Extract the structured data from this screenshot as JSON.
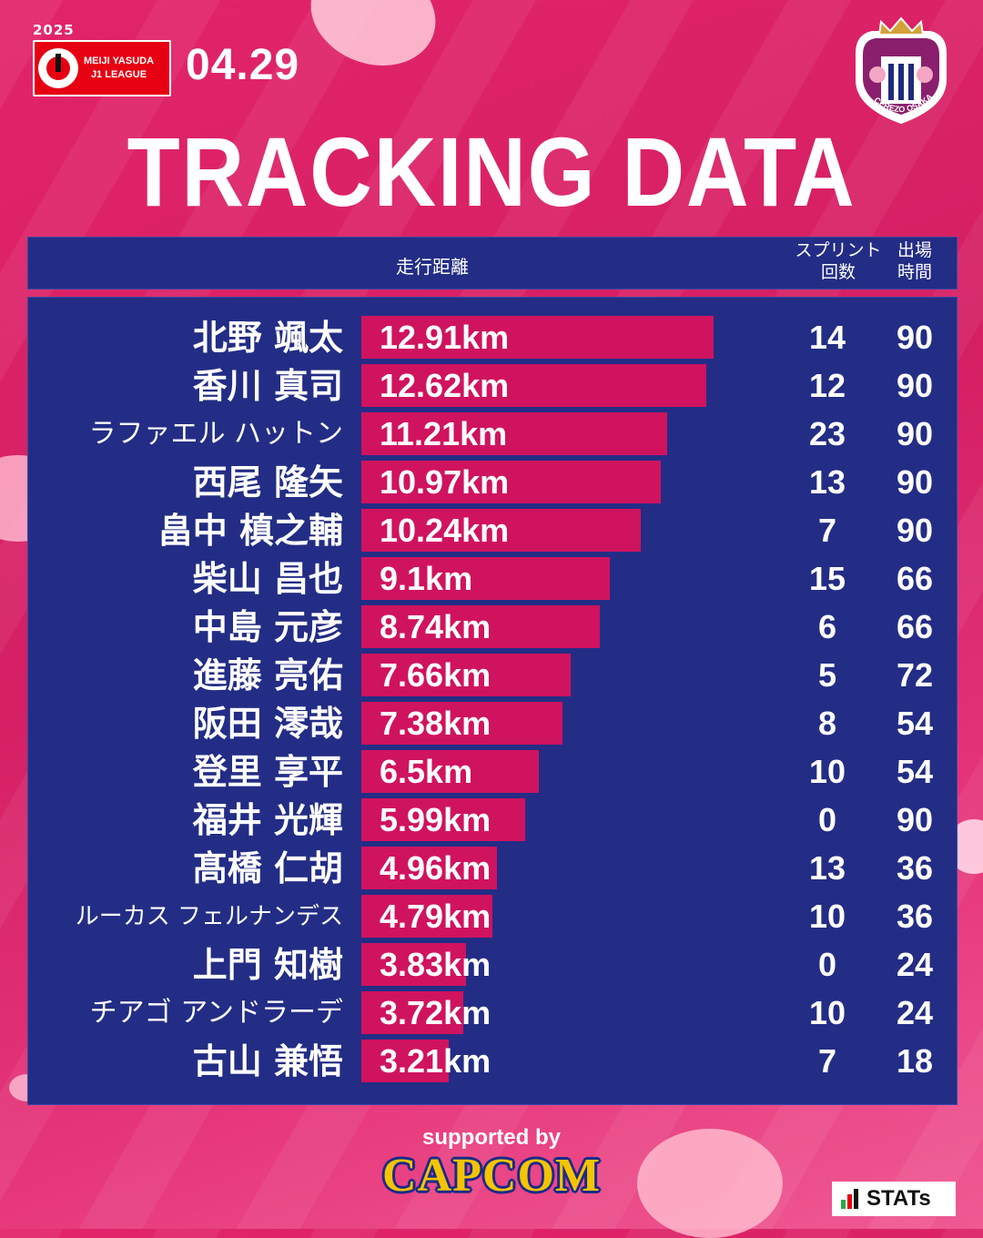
{
  "league": {
    "year": "2025",
    "line1": "MEIJI YASUDA",
    "line2": "J1 LEAGUE"
  },
  "match_date": "04.29",
  "club_crest_text": "CEREZO OSAKA",
  "colors": {
    "background": "#e2246a",
    "panel": "#232d85",
    "bar": "#d0135f",
    "sponsor_fill": "#f5c400",
    "sponsor_outline": "#1b2a8a"
  },
  "chart_data": {
    "type": "bar",
    "orientation": "horizontal",
    "title": "TRACKING DATA",
    "columns": {
      "distance": "走行距離",
      "sprints": "スプリント 回数",
      "minutes": "出場 時間"
    },
    "columns_lines": {
      "sprints": [
        "スプリント",
        "回数"
      ],
      "minutes": [
        "出場",
        "時間"
      ]
    },
    "unit": "km",
    "xlim": [
      0,
      14
    ],
    "rows": [
      {
        "name": "北野 颯太",
        "distance": 12.91,
        "distance_label": "12.91km",
        "sprints": 14,
        "minutes": 90
      },
      {
        "name": "香川 真司",
        "distance": 12.62,
        "distance_label": "12.62km",
        "sprints": 12,
        "minutes": 90
      },
      {
        "name": "ラファエル ハットン",
        "distance": 11.21,
        "distance_label": "11.21km",
        "sprints": 23,
        "minutes": 90
      },
      {
        "name": "西尾 隆矢",
        "distance": 10.97,
        "distance_label": "10.97km",
        "sprints": 13,
        "minutes": 90
      },
      {
        "name": "畠中 槙之輔",
        "distance": 10.24,
        "distance_label": "10.24km",
        "sprints": 7,
        "minutes": 90
      },
      {
        "name": "柴山 昌也",
        "distance": 9.1,
        "distance_label": "9.1km",
        "sprints": 15,
        "minutes": 66
      },
      {
        "name": "中島 元彦",
        "distance": 8.74,
        "distance_label": "8.74km",
        "sprints": 6,
        "minutes": 66
      },
      {
        "name": "進藤 亮佑",
        "distance": 7.66,
        "distance_label": "7.66km",
        "sprints": 5,
        "minutes": 72
      },
      {
        "name": "阪田 澪哉",
        "distance": 7.38,
        "distance_label": "7.38km",
        "sprints": 8,
        "minutes": 54
      },
      {
        "name": "登里 享平",
        "distance": 6.5,
        "distance_label": "6.5km",
        "sprints": 10,
        "minutes": 54
      },
      {
        "name": "福井 光輝",
        "distance": 5.99,
        "distance_label": "5.99km",
        "sprints": 0,
        "minutes": 90
      },
      {
        "name": "髙橋 仁胡",
        "distance": 4.96,
        "distance_label": "4.96km",
        "sprints": 13,
        "minutes": 36
      },
      {
        "name": "ルーカス フェルナンデス",
        "distance": 4.79,
        "distance_label": "4.79km",
        "sprints": 10,
        "minutes": 36
      },
      {
        "name": "上門 知樹",
        "distance": 3.83,
        "distance_label": "3.83km",
        "sprints": 0,
        "minutes": 24
      },
      {
        "name": "チアゴ アンドラーデ",
        "distance": 3.72,
        "distance_label": "3.72km",
        "sprints": 10,
        "minutes": 24
      },
      {
        "name": "古山 兼悟",
        "distance": 3.21,
        "distance_label": "3.21km",
        "sprints": 7,
        "minutes": 18
      }
    ]
  },
  "footer": {
    "supported_by": "supported by",
    "sponsor": "CAPCOM",
    "data_provider": "STATs"
  }
}
